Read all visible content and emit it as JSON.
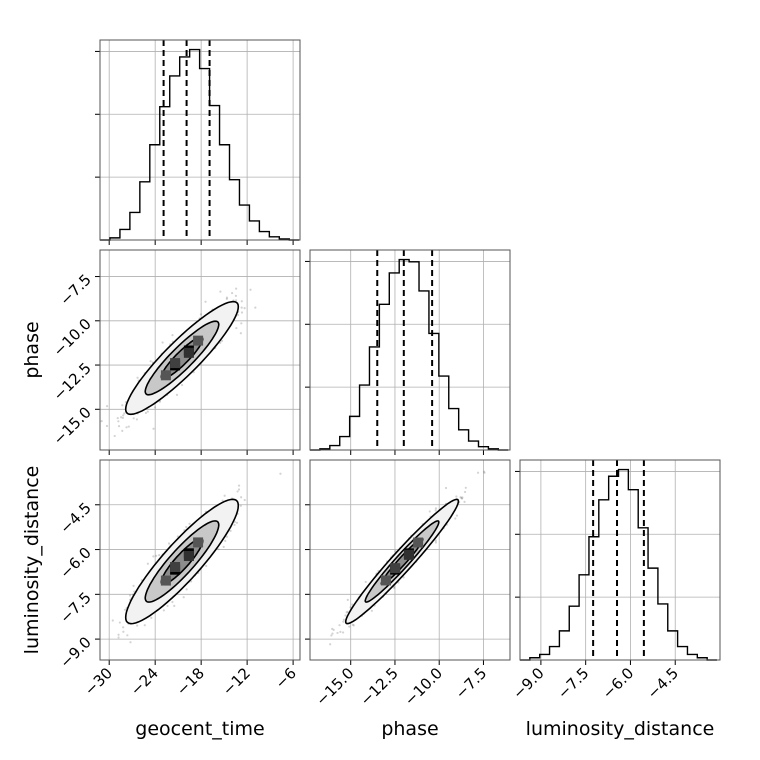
{
  "chart_data": {
    "type": "corner",
    "parameters": [
      "geocent_time",
      "phase",
      "luminosity_distance"
    ],
    "grid": true,
    "ranges": {
      "geocent_time": [
        -31.2,
        -5.1
      ],
      "phase": [
        -17.3,
        -6.0
      ],
      "luminosity_distance": [
        -9.7,
        -3.0
      ]
    },
    "ticks": {
      "geocent_time": [
        -30,
        -24,
        -18,
        -12,
        -6
      ],
      "phase": [
        -15.0,
        -12.5,
        -10.0,
        -7.5
      ],
      "luminosity_distance": [
        -9.0,
        -7.5,
        -6.0,
        -4.5
      ]
    },
    "tick_labels": {
      "geocent_time": [
        "−30",
        "−24",
        "−18",
        "−12",
        "−6"
      ],
      "phase": [
        "−15.0",
        "−12.5",
        "−10.0",
        "−7.5"
      ],
      "luminosity_distance": [
        "−9.0",
        "−7.5",
        "−6.0",
        "−4.5"
      ]
    },
    "axis_labels": {
      "geocent_time": "geocent_time",
      "phase": "phase",
      "luminosity_distance": "luminosity_distance"
    },
    "histograms": {
      "geocent_time": {
        "edges": [
          -31.2,
          -29.9,
          -28.6,
          -27.3,
          -26.0,
          -24.7,
          -23.4,
          -22.1,
          -20.8,
          -19.5,
          -18.2,
          -16.9,
          -15.6,
          -14.3,
          -13.0,
          -11.7,
          -10.4,
          -9.1,
          -7.8,
          -6.5,
          -5.2
        ],
        "counts": [
          0,
          2,
          10,
          26,
          55,
          90,
          126,
          155,
          173,
          180,
          162,
          127,
          90,
          57,
          33,
          18,
          8,
          3,
          1,
          0
        ],
        "quantiles": [
          -22.9,
          -19.9,
          -16.9
        ]
      },
      "phase": {
        "edges": [
          -17.3,
          -16.74,
          -16.18,
          -15.62,
          -15.06,
          -14.5,
          -13.94,
          -13.38,
          -12.82,
          -12.26,
          -11.7,
          -11.14,
          -10.58,
          -10.02,
          -9.46,
          -8.9,
          -8.34,
          -7.78,
          -7.22,
          -6.66,
          -6.1
        ],
        "counts": [
          0,
          1,
          4,
          12,
          30,
          58,
          92,
          130,
          158,
          170,
          168,
          142,
          104,
          66,
          37,
          18,
          8,
          3,
          1,
          0
        ],
        "quantiles": [
          -13.5,
          -12.0,
          -10.4
        ]
      },
      "luminosity_distance": {
        "edges": [
          -9.7,
          -9.37,
          -9.04,
          -8.71,
          -8.38,
          -8.05,
          -7.72,
          -7.39,
          -7.06,
          -6.73,
          -6.4,
          -6.07,
          -5.74,
          -5.41,
          -5.08,
          -4.75,
          -4.42,
          -4.09,
          -3.76,
          -3.43,
          -3.1
        ],
        "counts": [
          0,
          2,
          5,
          12,
          26,
          48,
          76,
          110,
          143,
          164,
          170,
          152,
          118,
          82,
          50,
          26,
          12,
          5,
          2,
          0
        ],
        "quantiles": [
          -7.25,
          -6.45,
          -5.55
        ]
      }
    },
    "pairs": [
      {
        "x": "geocent_time",
        "y": "phase",
        "center": [
          -20.5,
          -12.1
        ],
        "sd": [
          3.0,
          1.3
        ],
        "correlation": 0.91
      },
      {
        "x": "geocent_time",
        "y": "luminosity_distance",
        "center": [
          -20.5,
          -6.4
        ],
        "sd": [
          3.0,
          0.85
        ],
        "correlation": 0.9
      },
      {
        "x": "phase",
        "y": "luminosity_distance",
        "center": [
          -12.1,
          -6.4
        ],
        "sd": [
          1.3,
          0.85
        ],
        "correlation": 0.97
      }
    ]
  }
}
